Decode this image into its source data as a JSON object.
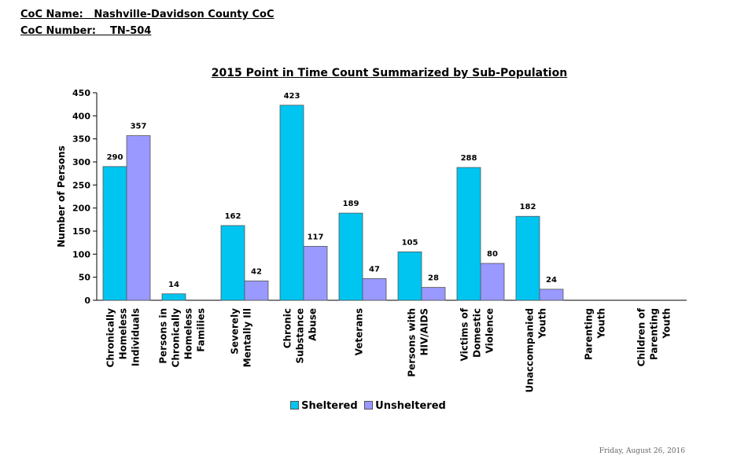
{
  "header": {
    "coc_name": "CoC Name:   Nashville-Davidson County CoC",
    "coc_number": "CoC Number:    TN-504"
  },
  "footer": {
    "date": "Friday, August 26, 2016"
  },
  "colors": {
    "sheltered": "#00c5f1",
    "unsheltered": "#9999ff"
  },
  "chart_data": {
    "type": "bar",
    "title": "2015 Point in Time Count Summarized by Sub-Population",
    "ylabel": "Number of Persons",
    "xlabel": "",
    "ylim": [
      0,
      450
    ],
    "yticks": [
      0,
      50,
      100,
      150,
      200,
      250,
      300,
      350,
      400,
      450
    ],
    "legend_position": "bottom",
    "grid": false,
    "categories": [
      "Chronically Homeless Individuals",
      "Persons in Chronically Homeless Families",
      "Severely Mentally Ill",
      "Chronic Substance Abuse",
      "Veterans",
      "Persons with HIV/AIDS",
      "Victims of Domestic Violence",
      "Unaccompanied Youth",
      "Parenting Youth",
      "Children of Parenting Youth"
    ],
    "category_lines": [
      [
        "Chronically",
        "Homeless",
        "Individuals"
      ],
      [
        "Persons in",
        "Chronically",
        "Homeless",
        "Families"
      ],
      [
        "Severely",
        "Mentally Ill"
      ],
      [
        "Chronic",
        "Substance",
        "Abuse"
      ],
      [
        "Veterans"
      ],
      [
        "Persons with",
        "HIV/AIDS"
      ],
      [
        "Victims of",
        "Domestic",
        "Violence"
      ],
      [
        "Unaccompanied",
        "Youth"
      ],
      [
        "Parenting",
        "Youth"
      ],
      [
        "Children of",
        "Parenting",
        "Youth"
      ]
    ],
    "series": [
      {
        "name": "Sheltered",
        "values": [
          290,
          14,
          162,
          423,
          189,
          105,
          288,
          182,
          null,
          null
        ]
      },
      {
        "name": "Unsheltered",
        "values": [
          357,
          null,
          42,
          117,
          47,
          28,
          80,
          24,
          null,
          null
        ]
      }
    ]
  }
}
